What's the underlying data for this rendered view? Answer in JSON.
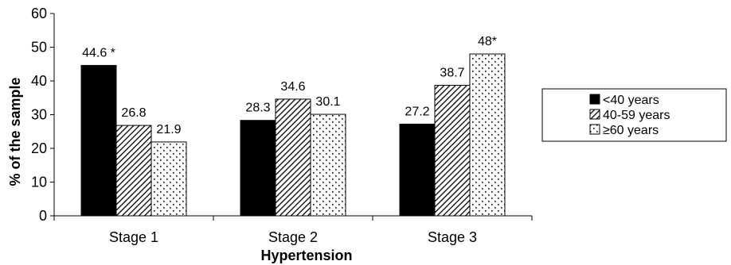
{
  "chart_data": {
    "type": "bar",
    "categories": [
      "Stage 1",
      "Stage 2",
      "Stage 3"
    ],
    "series": [
      {
        "name": "<40 years",
        "values": [
          44.6,
          28.3,
          27.2
        ],
        "labels": [
          "44.6 *",
          "28.3",
          "27.2"
        ],
        "fill": "solid",
        "color": "#000000"
      },
      {
        "name": "40-59 years",
        "values": [
          26.8,
          34.6,
          38.7
        ],
        "labels": [
          "26.8",
          "34.6",
          "38.7"
        ],
        "fill": "diagonal-stripes",
        "color": "#000000"
      },
      {
        "name": "≥60 years",
        "values": [
          21.9,
          30.1,
          48
        ],
        "labels": [
          "21.9",
          "30.1",
          "48*"
        ],
        "fill": "dots",
        "color": "#000000"
      }
    ],
    "yticks": [
      "0",
      "10",
      "20",
      "30",
      "40",
      "50",
      "60"
    ],
    "ylim": [
      0,
      60
    ],
    "xlabel": "Hypertension",
    "ylabel": "% of the sample",
    "legend_position": "right",
    "grid": false
  }
}
